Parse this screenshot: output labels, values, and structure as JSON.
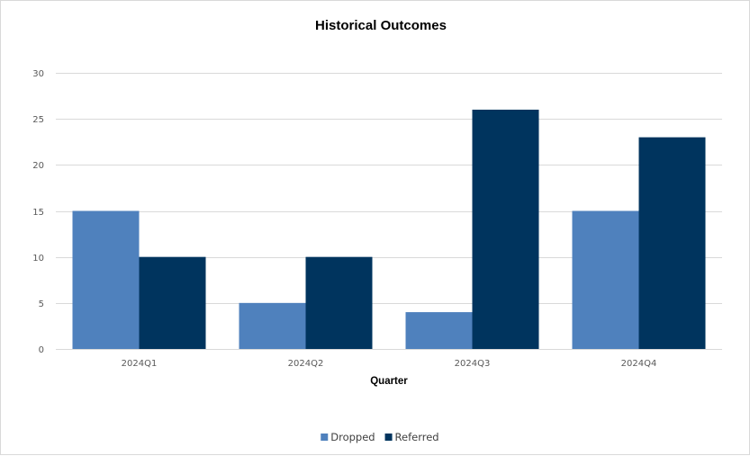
{
  "chart_data": {
    "type": "bar",
    "title": "Historical Outcomes",
    "xlabel": "Quarter",
    "ylabel": "",
    "categories": [
      "2024Q1",
      "2024Q2",
      "2024Q3",
      "2024Q4"
    ],
    "series": [
      {
        "name": "Dropped",
        "values": [
          15,
          5,
          4,
          15
        ],
        "color": "#4f81bd"
      },
      {
        "name": "Referred",
        "values": [
          10,
          10,
          26,
          23
        ],
        "color": "#00345e"
      }
    ],
    "ylim": [
      0,
      30
    ],
    "yticks": [
      0,
      5,
      10,
      15,
      20,
      25,
      30
    ],
    "grid": true,
    "legend_position": "bottom",
    "gridline_color": "#d9d9d9"
  }
}
